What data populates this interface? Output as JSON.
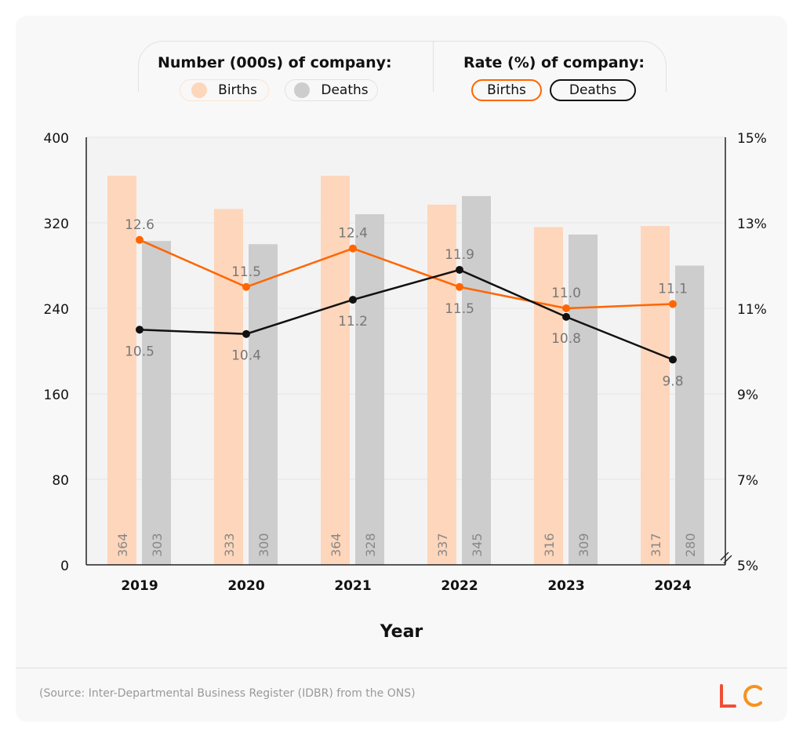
{
  "legend": {
    "number_title": "Number (000s) of company:",
    "rate_title": "Rate (%) of company:",
    "births": "Births",
    "deaths": "Deaths"
  },
  "source": "(Source: Inter-Departmental Business Register (IDBR) from the ONS)",
  "logo": "LC",
  "colors": {
    "births_bar": "#fed6bb",
    "deaths_bar": "#cdcdcd",
    "births_line": "#ff6600",
    "deaths_line": "#111111"
  },
  "chart_data": {
    "type": "bar+line",
    "categories": [
      "2019",
      "2020",
      "2021",
      "2022",
      "2023",
      "2024"
    ],
    "xlabel": "Year",
    "y_left": {
      "range": [
        0,
        400
      ],
      "ticks": [
        0,
        80,
        160,
        240,
        320,
        400
      ]
    },
    "y_right": {
      "range": [
        5,
        15
      ],
      "ticks": [
        "5%",
        "7%",
        "9%",
        "11%",
        "13%",
        "15%"
      ],
      "axis_break": true
    },
    "grid": true,
    "series": [
      {
        "name": "Births",
        "kind": "bar",
        "axis": "left",
        "values": [
          364,
          333,
          364,
          337,
          316,
          317
        ]
      },
      {
        "name": "Deaths",
        "kind": "bar",
        "axis": "left",
        "values": [
          303,
          300,
          328,
          345,
          309,
          280
        ]
      },
      {
        "name": "Births",
        "kind": "line",
        "axis": "right",
        "values": [
          12.6,
          11.5,
          12.4,
          11.5,
          11.0,
          11.1
        ]
      },
      {
        "name": "Deaths",
        "kind": "line",
        "axis": "right",
        "values": [
          10.5,
          10.4,
          11.2,
          11.9,
          10.8,
          9.8
        ]
      }
    ]
  }
}
